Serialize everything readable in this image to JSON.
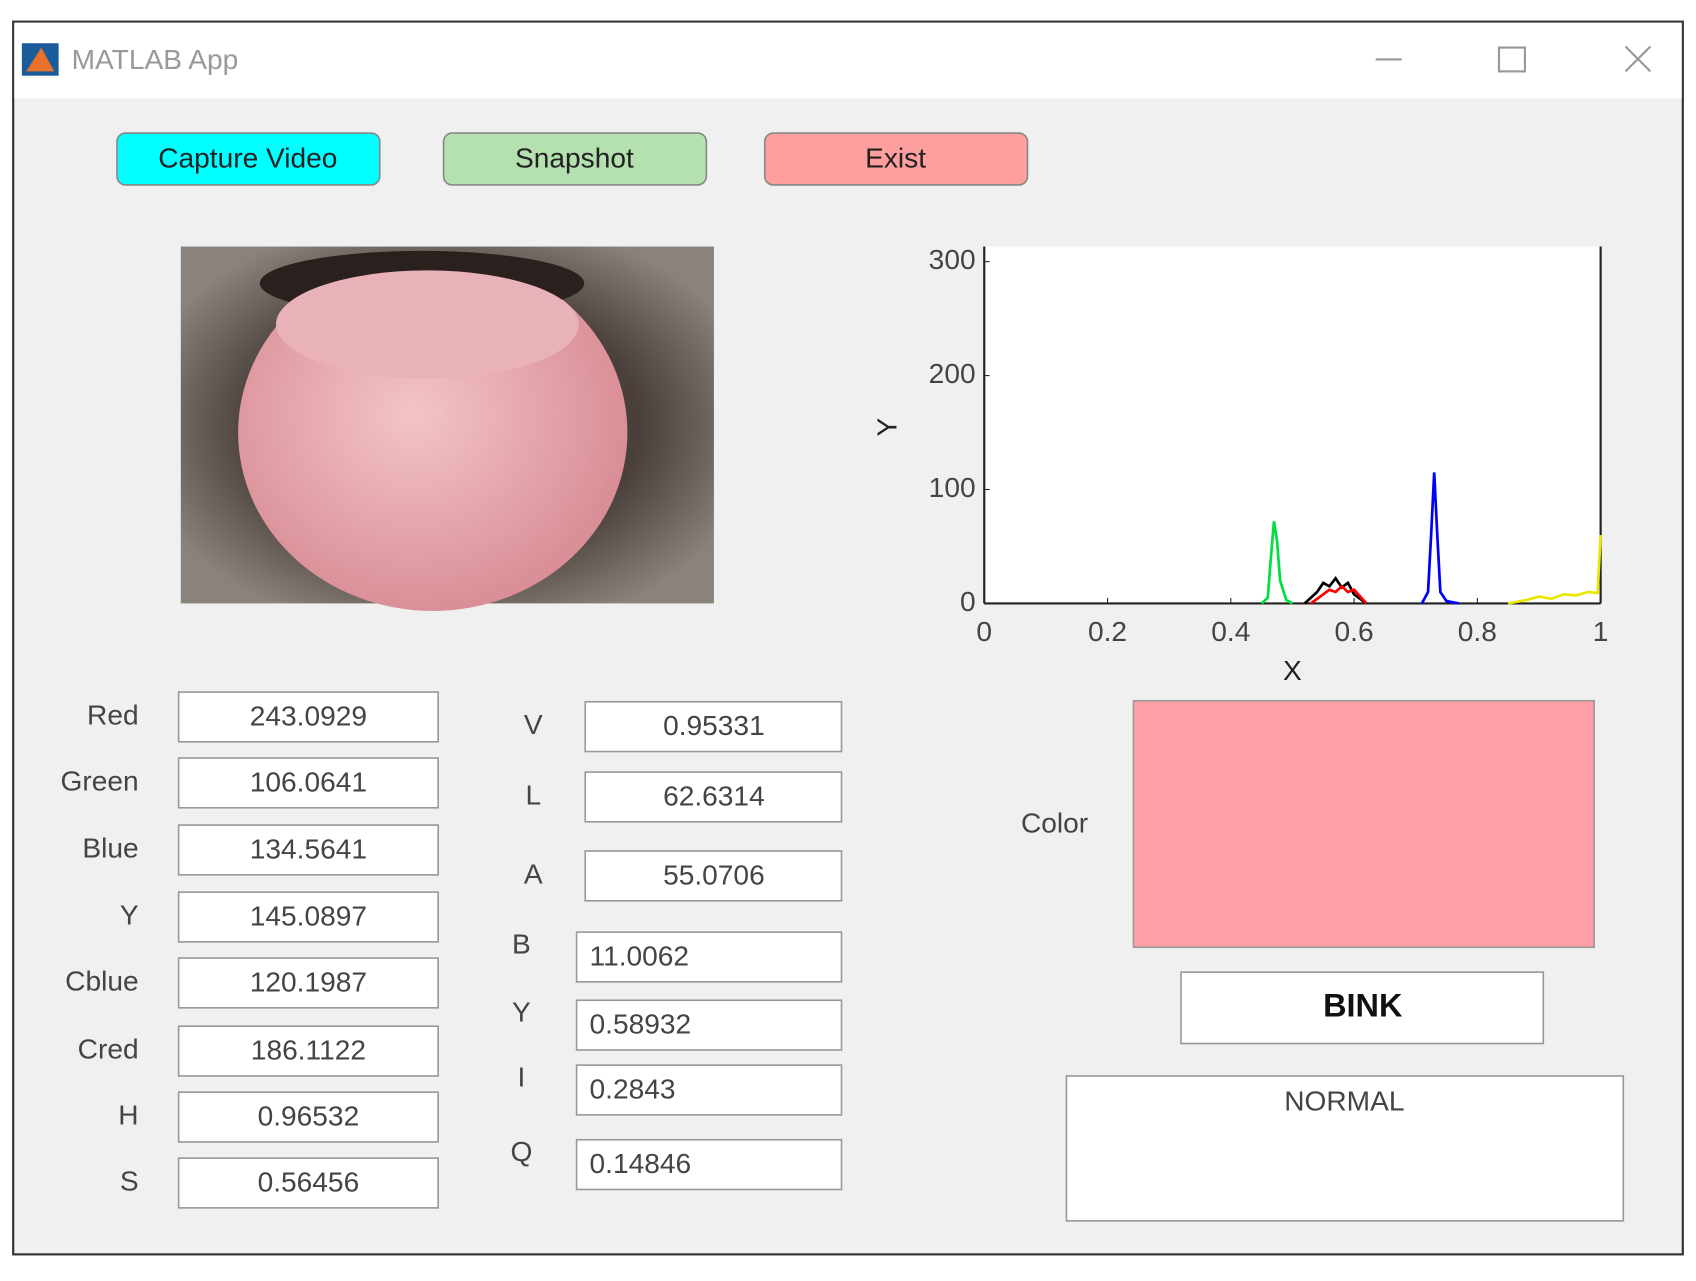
{
  "window": {
    "title": "MATLAB App"
  },
  "buttons": [
    "Capture Video",
    "Snapshot",
    "Exist"
  ],
  "left_fields": [
    {
      "label": "Red",
      "value": "243.0929"
    },
    {
      "label": "Green",
      "value": "106.0641"
    },
    {
      "label": "Blue",
      "value": "134.5641"
    },
    {
      "label": "Y",
      "value": "145.0897"
    },
    {
      "label": "Cblue",
      "value": "120.1987"
    },
    {
      "label": "Cred",
      "value": "186.1122"
    },
    {
      "label": "H",
      "value": "0.96532"
    },
    {
      "label": "S",
      "value": "0.56456"
    }
  ],
  "middle_fields": [
    {
      "label": "V",
      "value": "0.95331"
    },
    {
      "label": "L",
      "value": "62.6314"
    },
    {
      "label": "A",
      "value": "55.0706"
    },
    {
      "label": "B",
      "value": "11.0062"
    },
    {
      "label": "Y",
      "value": "0.58932"
    },
    {
      "label": "I",
      "value": "0.2843"
    },
    {
      "label": "Q",
      "value": "0.14846"
    }
  ],
  "plot": {
    "type": "line",
    "xlabel": "X",
    "ylabel": "Y",
    "xlim": [
      0,
      1
    ],
    "ylim": [
      0,
      300
    ],
    "xticks": [
      0,
      0.2,
      0.4,
      0.6,
      0.8,
      1
    ],
    "yticks": [
      0,
      100,
      200,
      300
    ],
    "series": [
      {
        "color": "#00e040",
        "x": [
          0.45,
          0.46,
          0.465,
          0.47,
          0.475,
          0.48,
          0.49,
          0.5
        ],
        "y": [
          0,
          5,
          40,
          72,
          55,
          20,
          3,
          0
        ]
      },
      {
        "color": "#000000",
        "x": [
          0.52,
          0.54,
          0.55,
          0.56,
          0.57,
          0.58,
          0.59,
          0.6,
          0.62
        ],
        "y": [
          0,
          10,
          18,
          15,
          22,
          14,
          18,
          8,
          0
        ]
      },
      {
        "color": "#ff0000",
        "x": [
          0.53,
          0.55,
          0.56,
          0.57,
          0.58,
          0.59,
          0.6,
          0.61,
          0.62
        ],
        "y": [
          0,
          8,
          12,
          10,
          15,
          10,
          12,
          6,
          0
        ]
      },
      {
        "color": "#0000ff",
        "x": [
          0.71,
          0.72,
          0.725,
          0.73,
          0.735,
          0.74,
          0.75,
          0.77
        ],
        "y": [
          0,
          10,
          60,
          115,
          60,
          10,
          2,
          0
        ]
      },
      {
        "color": "#e8e800",
        "x": [
          0.85,
          0.88,
          0.9,
          0.92,
          0.94,
          0.96,
          0.98,
          0.995,
          1
        ],
        "y": [
          0,
          3,
          6,
          4,
          8,
          7,
          10,
          9,
          60
        ]
      }
    ]
  },
  "color_label": "Color",
  "swatch_color": "#ffa0a8",
  "result": "BINK",
  "status": "NORMAL"
}
